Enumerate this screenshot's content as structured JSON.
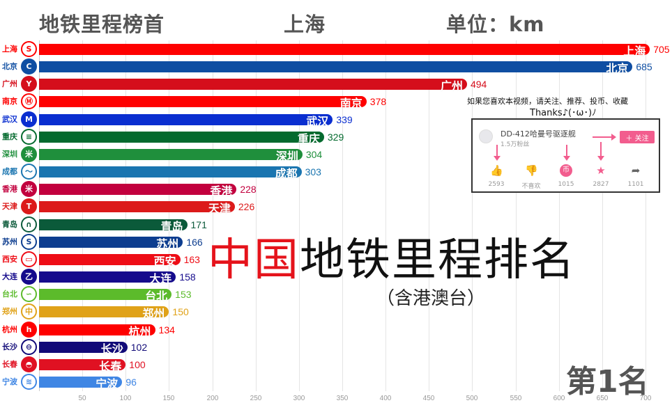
{
  "header": {
    "title": "地铁里程榜首",
    "leader_city": "上海",
    "unit_label": "单位：km"
  },
  "overlay": {
    "big_title_red": "中国",
    "big_title_black": "地铁里程排名",
    "subtitle": "（含港澳台）",
    "rank_label": "第1名",
    "promo_text": "如果您喜欢本视频，请关注、推荐、投币、收藏",
    "promo_thanks": "Thanks♪(･ω･)ﾉ"
  },
  "follow_card": {
    "uploader_name": "DD-412哈曼号驱逐舰",
    "fans": "1.5万粉丝",
    "follow_label": "＋ 关注",
    "actions": [
      {
        "icon": "thumbs-up-icon",
        "glyph": "👍",
        "count": "2593",
        "color": "#f25d8e"
      },
      {
        "icon": "thumbs-down-icon",
        "glyph": "👎",
        "count": "不喜欢",
        "color": "#666666"
      },
      {
        "icon": "coin-icon",
        "glyph": "币",
        "count": "1015",
        "color": "#f25d8e"
      },
      {
        "icon": "star-icon",
        "glyph": "★",
        "count": "2827",
        "color": "#f25d8e"
      },
      {
        "icon": "share-icon",
        "glyph": "➦",
        "count": "1101",
        "color": "#666666"
      }
    ]
  },
  "chart_data": {
    "type": "bar",
    "orientation": "horizontal",
    "title": "地铁里程榜首 上海",
    "unit": "km",
    "xlabel": "",
    "ylabel": "",
    "xlim": [
      0,
      700
    ],
    "x_ticks": [
      50,
      100,
      150,
      200,
      250,
      300,
      350,
      400,
      450,
      500,
      550,
      600,
      650,
      700
    ],
    "grid": true,
    "legend": "none",
    "categories": [
      "上海",
      "北京",
      "广州",
      "南京",
      "武汉",
      "重庆",
      "深圳",
      "成都",
      "香港",
      "天津",
      "青岛",
      "苏州",
      "西安",
      "大连",
      "台北",
      "郑州",
      "杭州",
      "长沙",
      "长春",
      "宁波"
    ],
    "values": [
      705,
      685,
      494,
      378,
      339,
      329,
      304,
      303,
      228,
      226,
      171,
      166,
      163,
      158,
      153,
      150,
      134,
      102,
      100,
      96
    ],
    "colors": [
      "#fe0000",
      "#0f4ea2",
      "#d50e1b",
      "#fe0000",
      "#0a2ed0",
      "#046a2e",
      "#1f8f3c",
      "#1a75b0",
      "#c2003e",
      "#dc1a1a",
      "#0b5a3a",
      "#0d3d8f",
      "#ee0d16",
      "#150b8c",
      "#5cbb2b",
      "#e0a218",
      "#fe0000",
      "#110a78",
      "#e01122",
      "#3f86e4"
    ],
    "logo_glyphs": [
      "S",
      "C",
      "Y",
      "Ⓜ",
      "M",
      "≡",
      "米",
      "〜",
      "米",
      "T",
      "∩",
      "S",
      "▭",
      "乙",
      "∽",
      "中",
      "h",
      "⊖",
      "◓",
      "≋"
    ],
    "logo_filled": [
      false,
      true,
      true,
      false,
      true,
      false,
      true,
      false,
      true,
      true,
      false,
      false,
      false,
      true,
      false,
      false,
      true,
      false,
      true,
      false
    ]
  }
}
